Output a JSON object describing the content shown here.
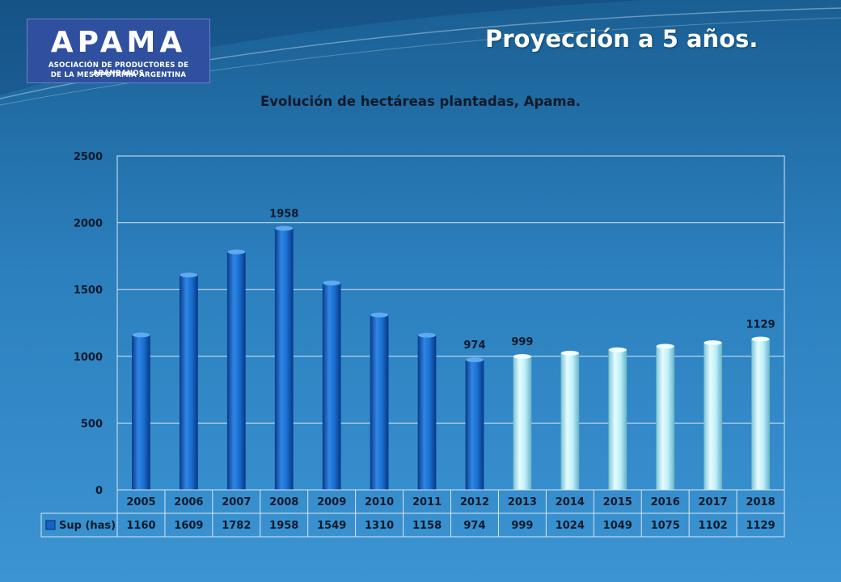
{
  "logo": {
    "name": "APAMA",
    "subtitle_line1": "ASOCIACIÓN DE PRODUCTORES DE ARÁNDANOS",
    "subtitle_line2": "DE LA MESOPOTAMIA ARGENTINA"
  },
  "page_title": "Proyección a 5 años.",
  "chart_data": {
    "type": "bar",
    "title": "Evolución de hectáreas plantadas, Apama.",
    "categories": [
      "2005",
      "2006",
      "2007",
      "2008",
      "2009",
      "2010",
      "2011",
      "2012",
      "2013",
      "2014",
      "2015",
      "2016",
      "2017",
      "2018"
    ],
    "series": [
      {
        "name": "Sup (has)",
        "values": [
          1160,
          1609,
          1782,
          1958,
          1549,
          1310,
          1158,
          974,
          999,
          1024,
          1049,
          1075,
          1102,
          1129
        ]
      }
    ],
    "ylim": [
      0,
      2500
    ],
    "yticks": [
      0,
      500,
      1000,
      1500,
      2000,
      2500
    ],
    "data_labels": {
      "3": "1958",
      "7": "974",
      "8": "999",
      "13": "1129"
    },
    "actual_color": "#1565c8",
    "projection_color": "#bff0fb",
    "actual_count": 8,
    "grid": true,
    "legend": "data-table"
  }
}
